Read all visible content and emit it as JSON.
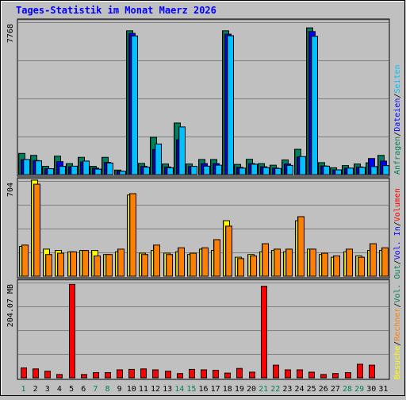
{
  "chart_data": [
    {
      "type": "bar",
      "title": "Tages-Statistik im Monat Maerz 2026",
      "panel": "top",
      "ylabel_max": "7768",
      "ylim": [
        0,
        7768
      ],
      "categories": [
        "1",
        "2",
        "3",
        "4",
        "5",
        "6",
        "7",
        "8",
        "9",
        "10",
        "11",
        "12",
        "13",
        "14",
        "15",
        "16",
        "17",
        "18",
        "19",
        "20",
        "21",
        "22",
        "23",
        "24",
        "25",
        "26",
        "27",
        "28",
        "29",
        "30",
        "31"
      ],
      "weekend_days": [
        "1",
        "7",
        "8",
        "14",
        "15",
        "21",
        "22",
        "28",
        "29"
      ],
      "series": [
        {
          "name": "Anfragen",
          "color": "#00805c",
          "values": [
            1080,
            980,
            420,
            940,
            560,
            880,
            420,
            880,
            230,
            7330,
            570,
            1900,
            540,
            2630,
            540,
            770,
            770,
            7330,
            520,
            780,
            560,
            480,
            750,
            1290,
            7480,
            610,
            350,
            460,
            540,
            600,
            980
          ]
        },
        {
          "name": "Dateien",
          "color": "#0000ff",
          "values": [
            760,
            720,
            300,
            660,
            400,
            640,
            330,
            620,
            170,
            7200,
            420,
            1280,
            390,
            1780,
            410,
            560,
            560,
            7160,
            370,
            560,
            400,
            330,
            540,
            900,
            7290,
            440,
            240,
            330,
            390,
            820,
            690
          ]
        },
        {
          "name": "Seiten",
          "color": "#00c0ff",
          "values": [
            770,
            700,
            300,
            420,
            430,
            690,
            280,
            590,
            170,
            7070,
            380,
            1560,
            350,
            2430,
            420,
            430,
            480,
            7080,
            330,
            530,
            360,
            310,
            470,
            920,
            7050,
            430,
            240,
            330,
            370,
            410,
            460
          ]
        }
      ]
    },
    {
      "type": "bar",
      "panel": "middle",
      "ylabel_max": "704",
      "ylim": [
        0,
        704
      ],
      "categories": [
        "1",
        "2",
        "3",
        "4",
        "5",
        "6",
        "7",
        "8",
        "9",
        "10",
        "11",
        "12",
        "13",
        "14",
        "15",
        "16",
        "17",
        "18",
        "19",
        "20",
        "21",
        "22",
        "23",
        "24",
        "25",
        "26",
        "27",
        "28",
        "29",
        "30",
        "31"
      ],
      "series": [
        {
          "name": "Besuche",
          "color": "#ffff00",
          "values": [
            220,
            710,
            200,
            190,
            180,
            190,
            190,
            160,
            180,
            600,
            170,
            190,
            170,
            180,
            160,
            200,
            190,
            410,
            140,
            160,
            180,
            190,
            180,
            410,
            200,
            160,
            140,
            180,
            150,
            190,
            190
          ]
        },
        {
          "name": "Rechner",
          "color": "#ff8000",
          "values": [
            230,
            680,
            160,
            170,
            180,
            190,
            150,
            160,
            200,
            610,
            160,
            230,
            160,
            210,
            170,
            210,
            270,
            370,
            130,
            150,
            240,
            200,
            200,
            440,
            200,
            170,
            150,
            200,
            140,
            240,
            210
          ]
        }
      ]
    },
    {
      "type": "bar",
      "panel": "bottom",
      "ylabel_max": "204.07 MB",
      "ylim": [
        0,
        204.07
      ],
      "categories": [
        "1",
        "2",
        "3",
        "4",
        "5",
        "6",
        "7",
        "8",
        "9",
        "10",
        "11",
        "12",
        "13",
        "14",
        "15",
        "16",
        "17",
        "18",
        "19",
        "20",
        "21",
        "22",
        "23",
        "24",
        "25",
        "26",
        "27",
        "28",
        "29",
        "30",
        "31"
      ],
      "series": [
        {
          "name": "Volumen",
          "color": "#ff0000",
          "values": [
            21,
            19,
            14,
            7,
            200,
            7,
            11,
            11,
            17,
            18,
            19,
            17,
            14,
            9,
            18,
            17,
            16,
            10,
            20,
            12,
            196,
            27,
            17,
            17,
            12,
            7,
            9,
            11,
            29,
            27,
            0
          ]
        }
      ]
    }
  ],
  "legend": {
    "top": [
      {
        "label": "Anfragen",
        "color": "#00805c"
      },
      {
        "label": "/",
        "color": "#000000"
      },
      {
        "label": "Dateien",
        "color": "#0000ff"
      },
      {
        "label": "/",
        "color": "#000000"
      },
      {
        "label": "Seiten",
        "color": "#00c0ff"
      }
    ],
    "middle": [
      {
        "label": "Besuche",
        "color": "#ffff00"
      },
      {
        "label": "/",
        "color": "#000000"
      },
      {
        "label": "Rechner",
        "color": "#ff8000"
      },
      {
        "label": "/",
        "color": "#000000"
      },
      {
        "label": "Vol. Out",
        "color": "#00805c"
      },
      {
        "label": "/",
        "color": "#000000"
      },
      {
        "label": "Vol. In",
        "color": "#0000ff"
      },
      {
        "label": "/",
        "color": "#000000"
      },
      {
        "label": "Volumen",
        "color": "#ff0000"
      }
    ]
  },
  "colors": {
    "background": "#c0c0c0",
    "title": "#0000ff",
    "weekday_label": "#000000",
    "weekend_label": "#00805c",
    "gridline": "#808080"
  }
}
